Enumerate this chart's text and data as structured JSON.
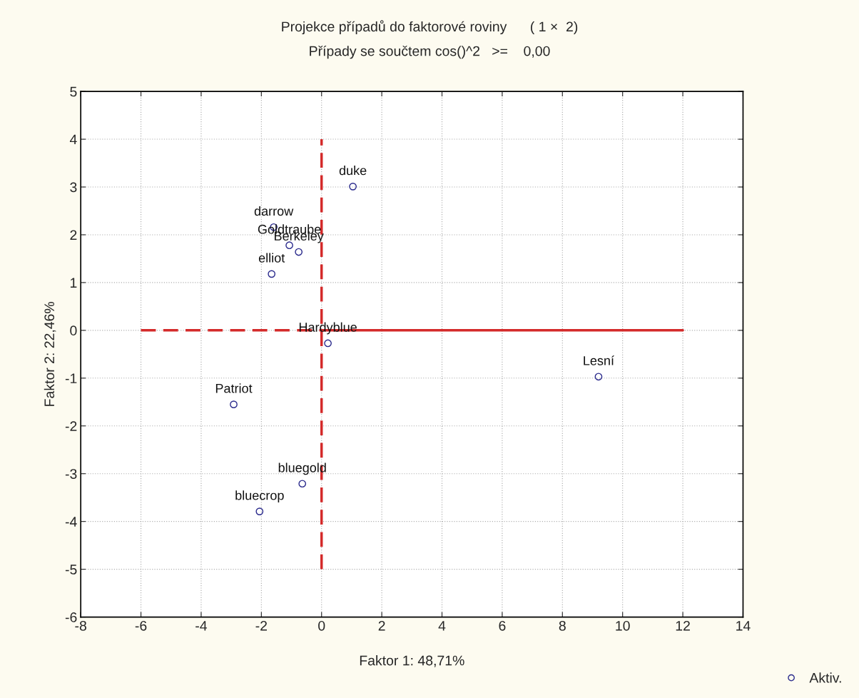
{
  "chart_data": {
    "type": "scatter",
    "title": "Projekce případů do faktorové roviny      ( 1 ×  2)",
    "subtitle": "Případy se součtem cos()^2   >=    0,00",
    "xlabel": "Faktor 1: 48,71%",
    "ylabel": "Faktor 2: 22,46%",
    "xlim": [
      -8,
      14
    ],
    "xticks": [
      -8,
      -6,
      -4,
      -2,
      0,
      2,
      4,
      6,
      8,
      10,
      12,
      14
    ],
    "ylim": [
      -6,
      5
    ],
    "yticks": [
      -6,
      -5,
      -4,
      -3,
      -2,
      -1,
      0,
      1,
      2,
      3,
      4,
      5
    ],
    "grid": true,
    "legend": "bottom right",
    "series": [
      {
        "name": "Aktiv.",
        "marker": "circle",
        "color": "#2a2a8c",
        "x": [
          1.04,
          -1.59,
          -1.07,
          -0.76,
          -1.66,
          0.21,
          9.2,
          -2.92,
          -0.64,
          -2.06
        ],
        "values": [
          3.01,
          2.16,
          1.78,
          1.64,
          1.18,
          -0.27,
          -0.97,
          -1.55,
          -3.21,
          -3.79
        ]
      },
      {
        "type": "line",
        "color": "#d42a2a",
        "line_style": "dashed",
        "x": [
          -6,
          0
        ],
        "values": [
          0,
          0
        ]
      },
      {
        "type": "line",
        "color": "#d42a2a",
        "line_style": "solid",
        "x": [
          0,
          12
        ],
        "values": [
          0,
          0
        ]
      },
      {
        "type": "line",
        "color": "#d42a2a",
        "line_style": "dashed",
        "x": [
          0,
          0
        ],
        "values": [
          -5,
          4
        ]
      }
    ],
    "annotations": [
      {
        "text": "duke",
        "x": 1.04,
        "y": 3.01
      },
      {
        "text": "darrow",
        "x": -1.59,
        "y": 2.16
      },
      {
        "text": "Goldtraube",
        "x": -1.07,
        "y": 1.78
      },
      {
        "text": "Berkeley",
        "x": -0.76,
        "y": 1.64
      },
      {
        "text": "elliot",
        "x": -1.66,
        "y": 1.18
      },
      {
        "text": "Hardyblue",
        "x": 0.21,
        "y": -0.27
      },
      {
        "text": "Lesní",
        "x": 9.2,
        "y": -0.97
      },
      {
        "text": "Patriot",
        "x": -2.92,
        "y": -1.55
      },
      {
        "text": "bluegold",
        "x": -0.64,
        "y": -3.21
      },
      {
        "text": "bluecrop",
        "x": -2.06,
        "y": -3.79
      }
    ]
  }
}
